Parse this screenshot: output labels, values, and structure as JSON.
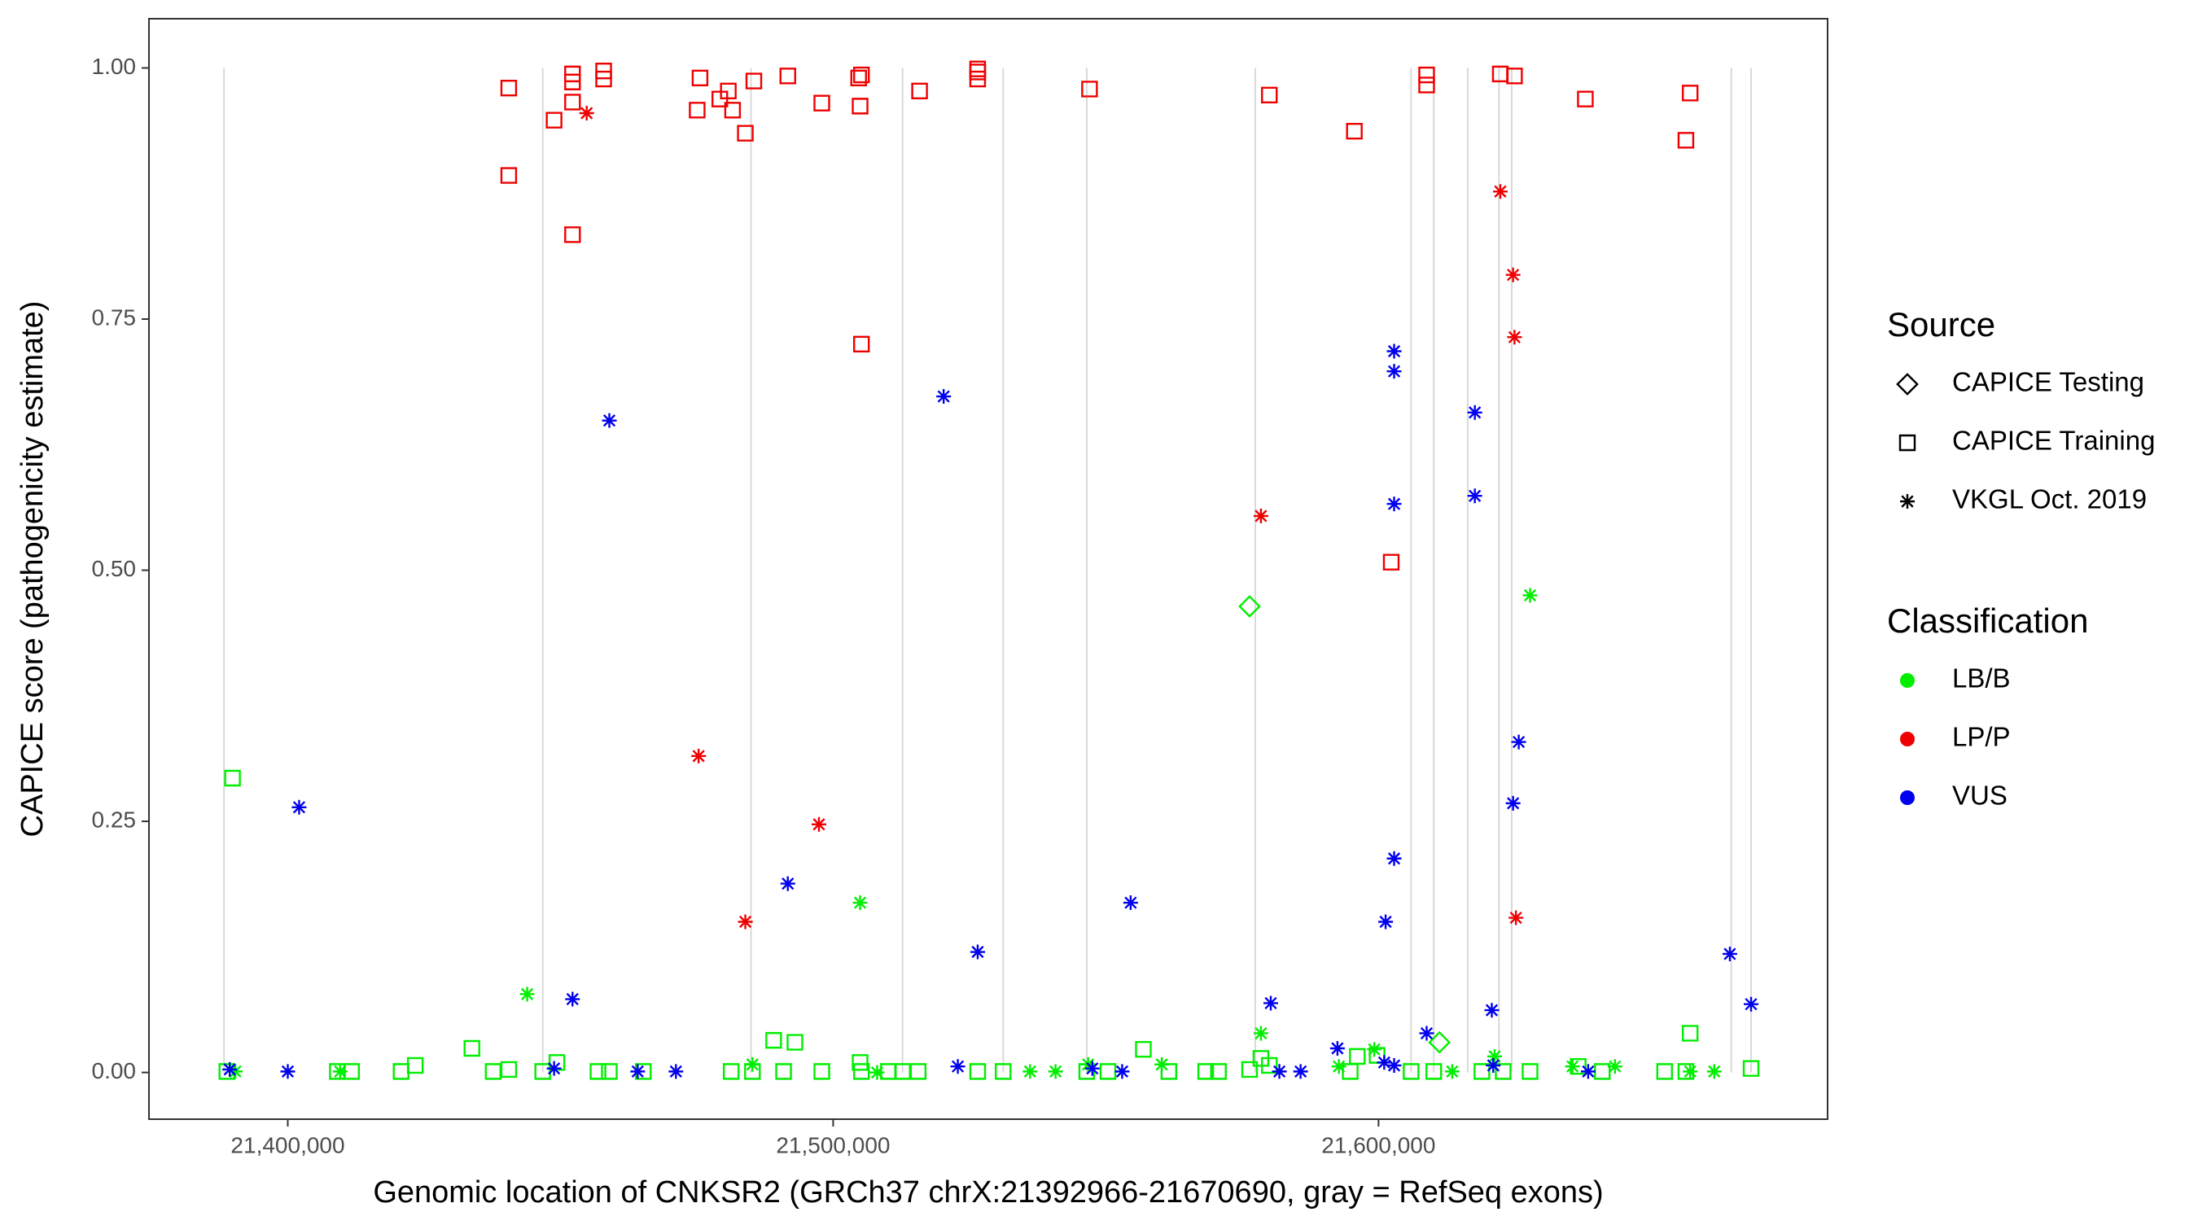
{
  "chart_data": {
    "type": "scatter",
    "x_label": "Genomic location of CNKSR2 (GRCh37 chrX:21392966-21670690, gray = RefSeq exons)",
    "y_label": "CAPICE score (pathogenicity estimate)",
    "xlim": [
      21374550,
      21682340
    ],
    "ylim": [
      -0.0465,
      1.049
    ],
    "xticks": [
      {
        "value": 21400000,
        "label": "21,400,000"
      },
      {
        "value": 21500000,
        "label": "21,500,000"
      },
      {
        "value": 21600000,
        "label": "21,600,000"
      }
    ],
    "yticks": [
      {
        "value": 0,
        "label": "0.00"
      },
      {
        "value": 0.25,
        "label": "0.25"
      },
      {
        "value": 0.5,
        "label": "0.50"
      },
      {
        "value": 0.75,
        "label": "0.75"
      },
      {
        "value": 1,
        "label": "1.00"
      }
    ],
    "exon_color": "#d9d9d9",
    "exons": [
      21388310,
      21446750,
      21484930,
      21512730,
      21531170,
      21546500,
      21577400,
      21605970,
      21610130,
      21616360,
      21622080,
      21624420,
      21664680,
      21668310
    ],
    "source_title": "Source",
    "sources": [
      {
        "name": "CAPICE Testing",
        "shape": "diamond"
      },
      {
        "name": "CAPICE Training",
        "shape": "square"
      },
      {
        "name": "VKGL Oct. 2019",
        "shape": "asterisk"
      }
    ],
    "classification_title": "Classification",
    "classifications": [
      {
        "name": "LB/B",
        "color": "#00ee00"
      },
      {
        "name": "LP/P",
        "color": "#ee0000"
      },
      {
        "name": "VUS",
        "color": "#0000ee"
      }
    ],
    "series": [
      {
        "source": "CAPICE Training",
        "classification": "LB/B",
        "x": [
          21389870,
          21388830,
          21409090,
          21411690,
          21420780,
          21423380,
          21433770,
          21437660,
          21440520,
          21446750,
          21449350,
          21456880,
          21458960,
          21465190,
          21481300,
          21485200,
          21489090,
          21490910,
          21492990,
          21497920,
          21504940,
          21505190,
          21510130,
          21512730,
          21515590,
          21526500,
          21531170,
          21546500,
          21550390,
          21556880,
          21561560,
          21568310,
          21570650,
          21576360,
          21578440,
          21579980,
          21594810,
          21596110,
          21599740,
          21605970,
          21610130,
          21618960,
          21622850,
          21627780,
          21636610,
          21641030,
          21652460,
          21656360,
          21657140,
          21668310
        ],
        "y": [
          0.293,
          0.001,
          0.001,
          0.001,
          0.001,
          0.007,
          0.024,
          0.001,
          0.003,
          0.001,
          0.01,
          0.001,
          0.001,
          0.001,
          0.001,
          0.001,
          0.032,
          0.001,
          0.03,
          0.001,
          0.01,
          0.001,
          0.001,
          0.001,
          0.001,
          0.001,
          0.001,
          0.001,
          0.001,
          0.023,
          0.001,
          0.001,
          0.001,
          0.003,
          0.014,
          0.007,
          0.001,
          0.016,
          0.017,
          0.001,
          0.001,
          0.001,
          0.001,
          0.001,
          0.006,
          0.001,
          0.001,
          0.001,
          0.039,
          0.004
        ]
      },
      {
        "source": "CAPICE Testing",
        "classification": "LB/B",
        "x": [
          21576360,
          21611170
        ],
        "y": [
          0.464,
          0.03
        ]
      },
      {
        "source": "VKGL Oct. 2019",
        "classification": "LB/B",
        "x": [
          21390390,
          21409610,
          21443900,
          21485200,
          21504940,
          21508060,
          21536110,
          21540780,
          21546760,
          21560260,
          21578440,
          21592730,
          21599220,
          21613510,
          21621290,
          21627780,
          21635570,
          21643360,
          21657140,
          21661560
        ],
        "y": [
          0.001,
          0.001,
          0.078,
          0.008,
          0.169,
          0.0,
          0.001,
          0.001,
          0.008,
          0.008,
          0.039,
          0.006,
          0.023,
          0.001,
          0.016,
          0.475,
          0.006,
          0.006,
          0.001,
          0.001
        ]
      },
      {
        "source": "CAPICE Training",
        "classification": "LP/P",
        "x": [
          21440520,
          21440520,
          21448830,
          21452210,
          21452210,
          21452210,
          21452210,
          21457920,
          21457920,
          21475070,
          21475590,
          21479220,
          21480780,
          21481560,
          21483900,
          21485460,
          21491690,
          21497920,
          21504680,
          21504940,
          21505190,
          21505190,
          21515850,
          21526500,
          21526500,
          21526500,
          21547010,
          21579980,
          21595570,
          21602330,
          21608820,
          21608820,
          21622330,
          21624930,
          21637920,
          21656360,
          21657140
        ],
        "y": [
          0.98,
          0.893,
          0.948,
          0.994,
          0.986,
          0.966,
          0.834,
          0.997,
          0.989,
          0.958,
          0.99,
          0.969,
          0.977,
          0.958,
          0.935,
          0.987,
          0.992,
          0.965,
          0.99,
          0.962,
          0.725,
          0.993,
          0.977,
          0.996,
          0.989,
          0.999,
          0.979,
          0.973,
          0.937,
          0.508,
          0.993,
          0.983,
          0.994,
          0.992,
          0.969,
          0.928,
          0.975
        ]
      },
      {
        "source": "VKGL Oct. 2019",
        "classification": "LP/P",
        "x": [
          21454810,
          21475330,
          21483900,
          21497400,
          21578440,
          21622330,
          21624670,
          21624930,
          21625190
        ],
        "y": [
          0.955,
          0.315,
          0.15,
          0.247,
          0.554,
          0.877,
          0.794,
          0.732,
          0.154
        ]
      },
      {
        "source": "VKGL Oct. 2019",
        "classification": "VUS",
        "x": [
          21389350,
          21402080,
          21400000,
          21448830,
          21452210,
          21458960,
          21464160,
          21471170,
          21491690,
          21520260,
          21522860,
          21526500,
          21547530,
          21552990,
          21554550,
          21580240,
          21581820,
          21585710,
          21592470,
          21601040,
          21601300,
          21602860,
          21602860,
          21602860,
          21602860,
          21602860,
          21608820,
          21617660,
          21617660,
          21620770,
          21621030,
          21624670,
          21625710,
          21638440,
          21664420,
          21668310
        ],
        "y": [
          0.003,
          0.264,
          0.001,
          0.004,
          0.073,
          0.649,
          0.001,
          0.001,
          0.188,
          0.673,
          0.006,
          0.12,
          0.004,
          0.001,
          0.169,
          0.069,
          0.001,
          0.001,
          0.024,
          0.01,
          0.15,
          0.718,
          0.698,
          0.566,
          0.213,
          0.007,
          0.039,
          0.657,
          0.574,
          0.062,
          0.007,
          0.268,
          0.329,
          0.001,
          0.118,
          0.068
        ]
      }
    ]
  }
}
